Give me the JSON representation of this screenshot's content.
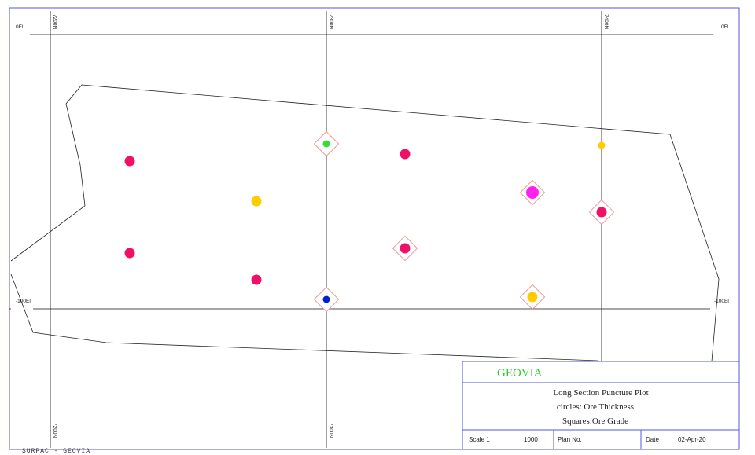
{
  "grid_labels": {
    "top_left_elev": "0El",
    "top_right_elev": "0El",
    "mid_left_elev": "-100El",
    "mid_right_elev": "-100El",
    "northing_1": "7200N",
    "northing_2": "7300N",
    "northing_3": "7400N"
  },
  "holes": [
    {
      "id": "h1",
      "color": "#ee1166",
      "size": "medium",
      "square": false
    },
    {
      "id": "h2",
      "color": "#ee1166",
      "size": "medium",
      "square": false
    },
    {
      "id": "h3",
      "color": "#ffcc00",
      "size": "medium",
      "square": false
    },
    {
      "id": "h4",
      "color": "#ee1166",
      "size": "medium",
      "square": false
    },
    {
      "id": "h5",
      "color": "#33dd33",
      "size": "small",
      "square": true
    },
    {
      "id": "h6",
      "color": "#0022cc",
      "size": "small",
      "square": true
    },
    {
      "id": "h7",
      "color": "#ee1166",
      "size": "medium",
      "square": false
    },
    {
      "id": "h8",
      "color": "#ee1166",
      "size": "medium",
      "square": true
    },
    {
      "id": "h9",
      "color": "#ff22ee",
      "size": "large",
      "square": true
    },
    {
      "id": "h10",
      "color": "#ffcc00",
      "size": "medium",
      "square": true
    },
    {
      "id": "h11",
      "color": "#ffcc00",
      "size": "small",
      "square": false
    },
    {
      "id": "h12",
      "color": "#ee1166",
      "size": "medium",
      "square": true
    }
  ],
  "title_block": {
    "brand": "GEOVIA",
    "line1": "Long Section Puncture Plot",
    "line2": "circles: Ore Thickness",
    "line3": "Squares:Ore Grade",
    "scale_label": "Scale 1",
    "scale_value": "1000",
    "plan_label": "Plan No.",
    "date_label": "Date",
    "date_value": "02-Apr-20"
  },
  "footer": "SURPAC - GEOVIA"
}
